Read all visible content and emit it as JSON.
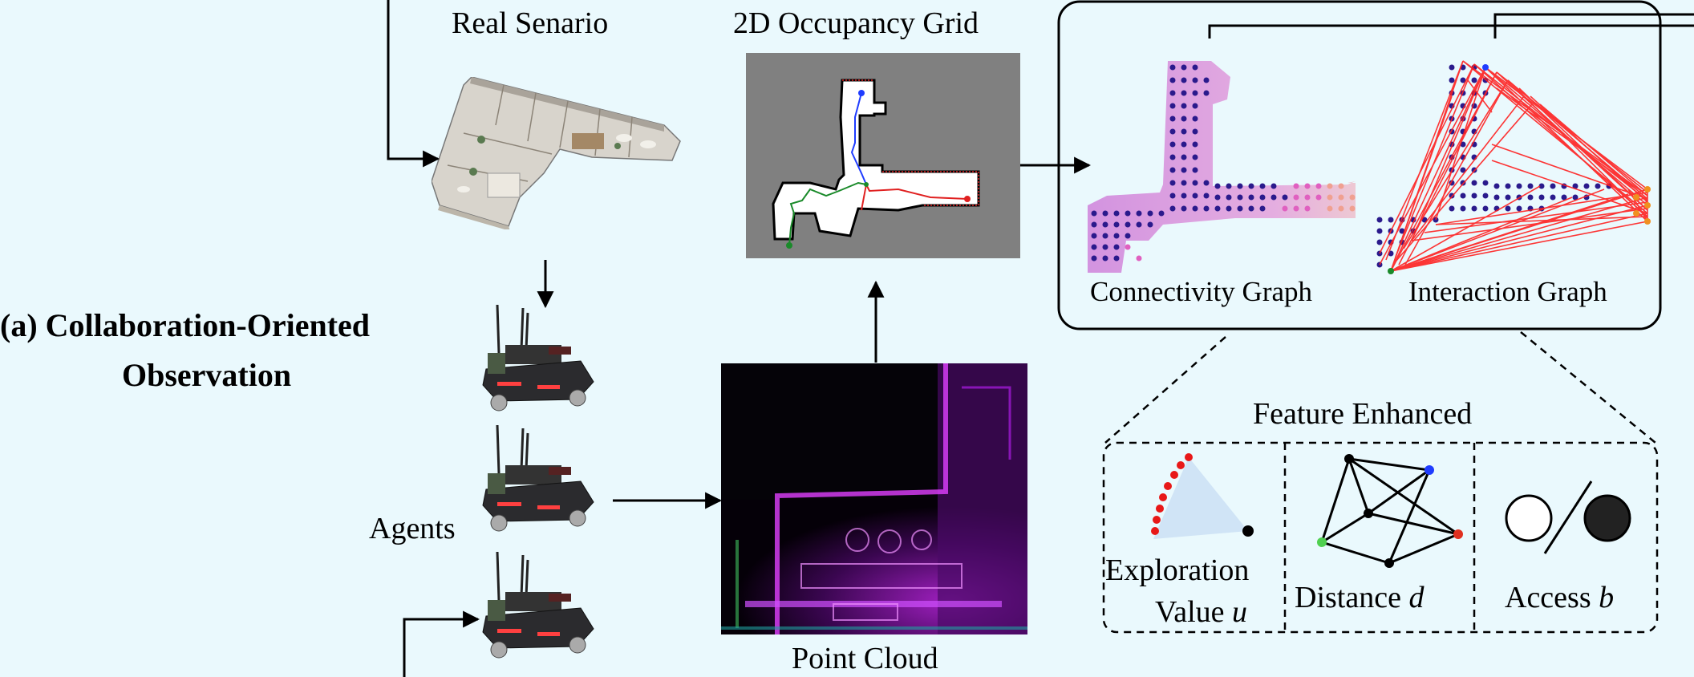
{
  "labels": {
    "real_scenario": "Real Senario",
    "occupancy_grid": "2D Occupancy Grid",
    "point_cloud": "Point Cloud",
    "agents": "Agents",
    "section_line1": "(a) Collaboration-Oriented",
    "section_line2": "Observation",
    "connectivity_graph": "Connectivity Graph",
    "interaction_graph": "Interaction Graph",
    "feature_enhanced": "Feature Enhanced",
    "exploration_line1": "Exploration",
    "exploration_line2": "Value",
    "exploration_var": "u",
    "distance": "Distance",
    "distance_var": "d",
    "access": "Access",
    "access_var": "b"
  },
  "colors": {
    "background": "#eaf9fd",
    "grid_gray": "#808080",
    "free_space": "#ffffff",
    "path_blue": "#1f3cff",
    "path_red": "#e02020",
    "path_green": "#1a8a2a",
    "node_dark": "#2a1a8c",
    "node_pink": "#e060c0",
    "edge_red": "#ff2020"
  }
}
